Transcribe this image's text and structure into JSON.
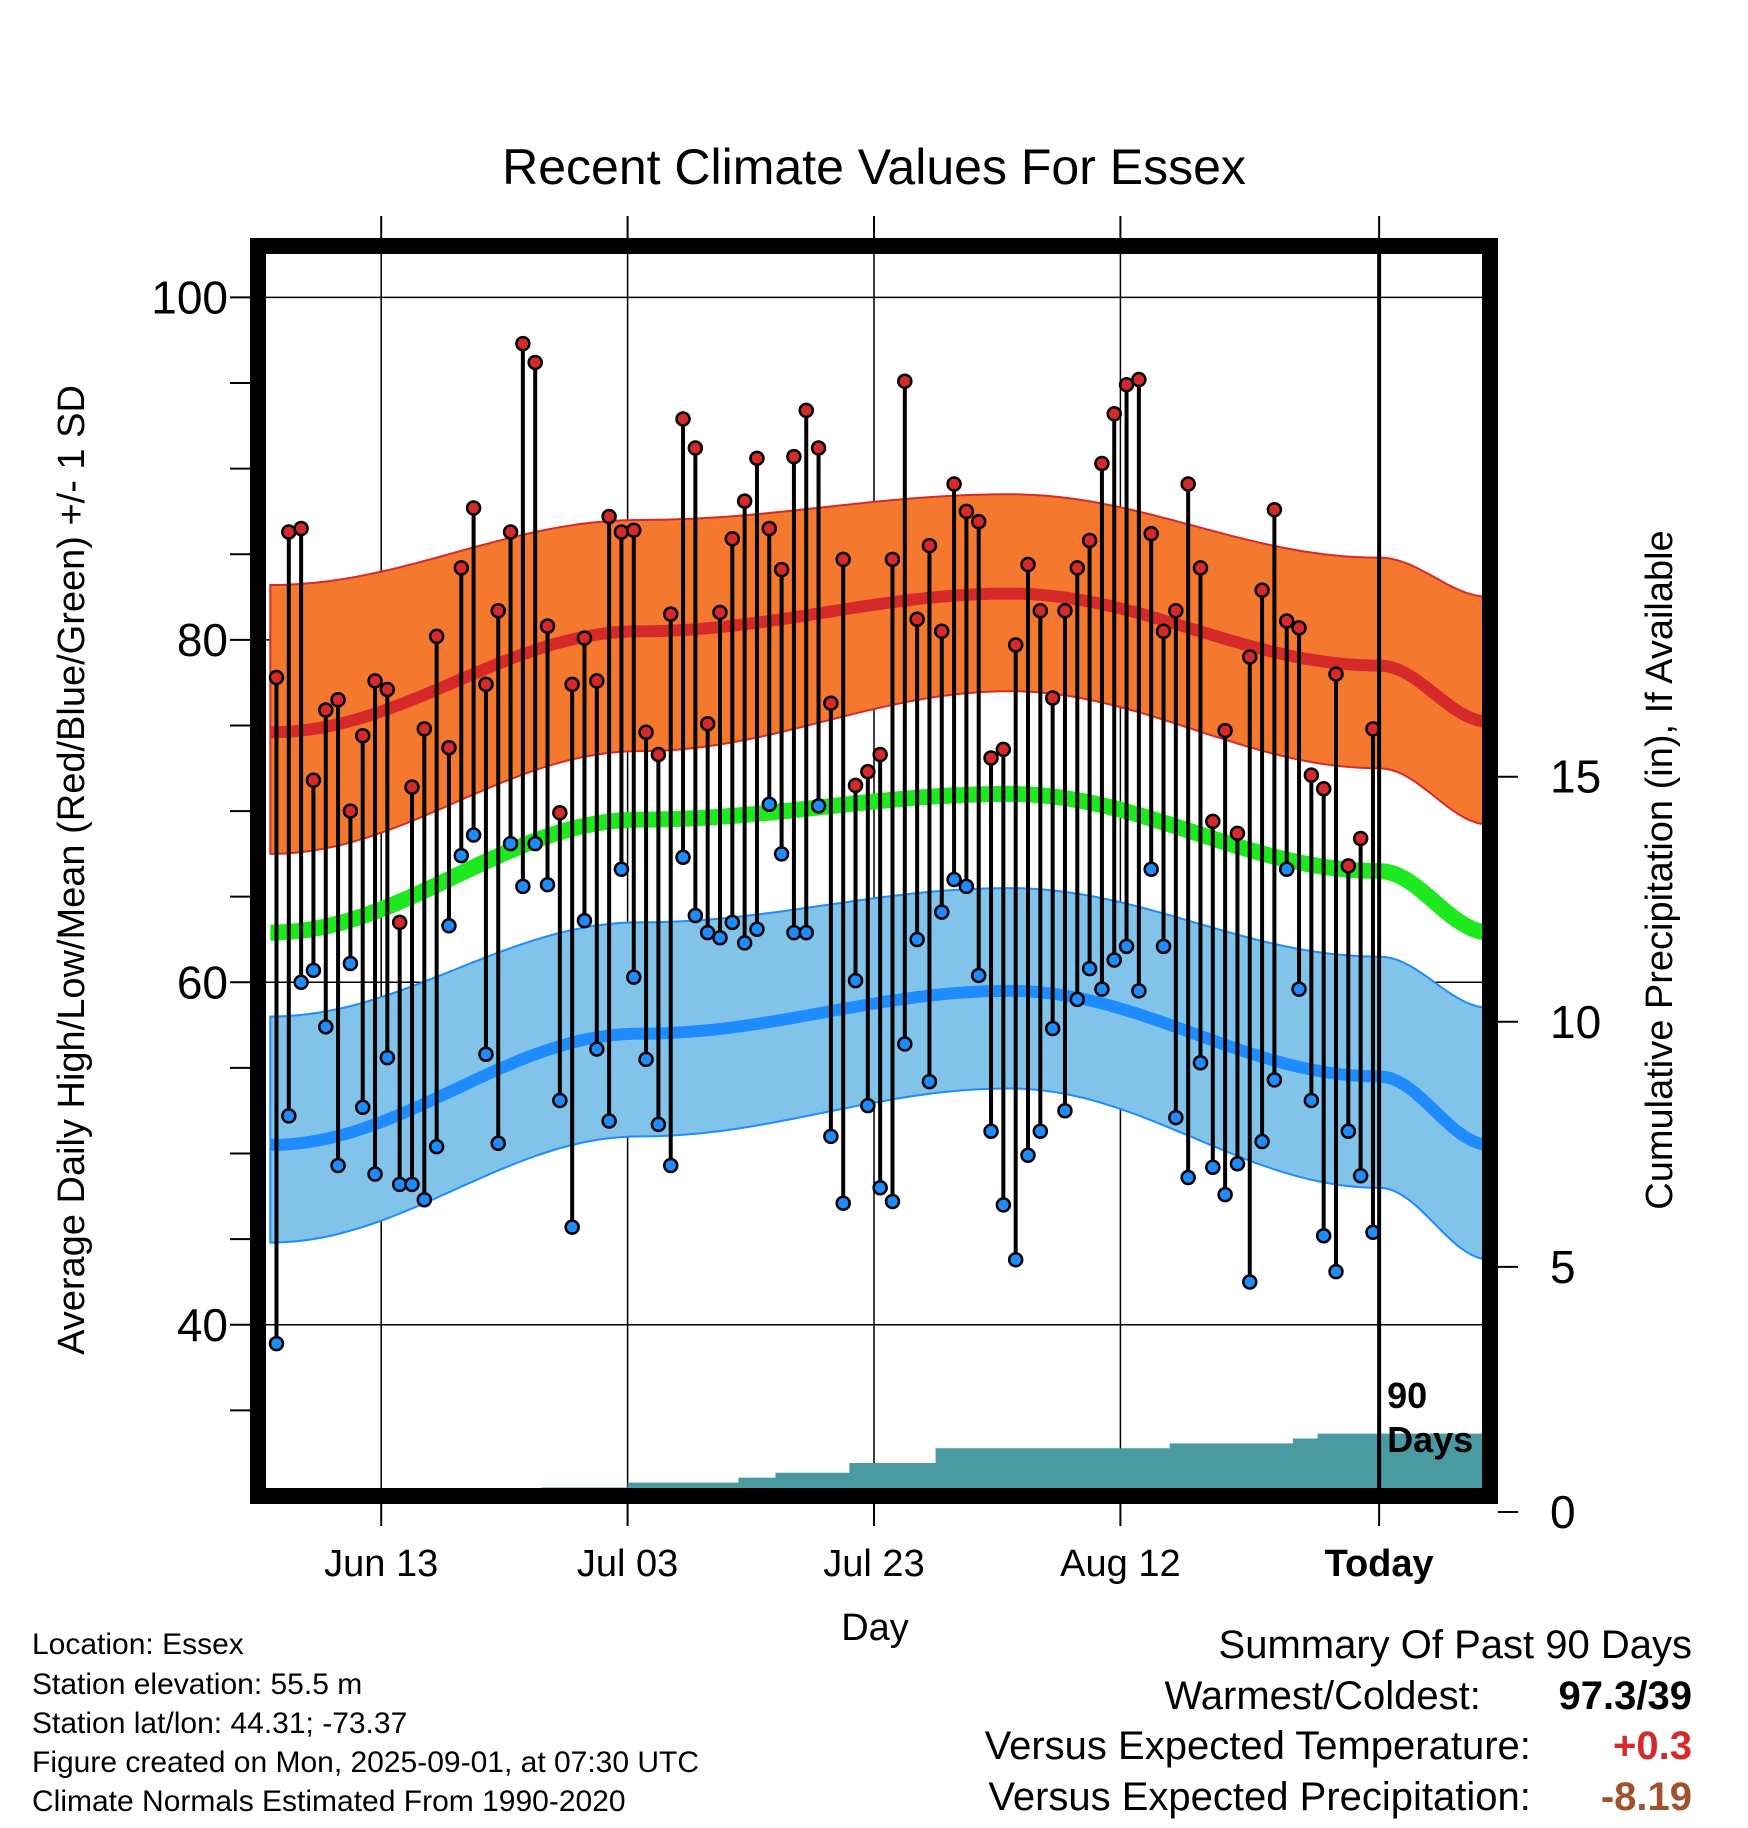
{
  "title": "Recent Climate Values For Essex",
  "chart_data": {
    "type": "line",
    "title": "Recent Climate Values For Essex",
    "xlabel": "Day",
    "ylabel": "Average Daily High/Low/Mean (Red/Blue/Green) +/- 1 SD",
    "y2label": "Cumulative Precipitation (in), If Available",
    "x_ticks": [
      "Jun 13",
      "Jul 03",
      "Jul 23",
      "Aug 12",
      "Today"
    ],
    "y_ticks": [
      40,
      60,
      80,
      100
    ],
    "y2_ticks": [
      0,
      5,
      10,
      15
    ],
    "ylim": [
      30,
      103
    ],
    "y2lim": [
      0,
      25.5
    ],
    "xlim_days_before_today": [
      -91,
      9
    ],
    "today_marker": "90 Days",
    "colors": {
      "high_band": "#f4792f",
      "high_mean": "#d62a2a",
      "low_band": "#82c3ea",
      "low_mean": "#1e8cff",
      "mean_line": "#1ee81e",
      "precip": "#4a9aa2",
      "high_dot": "#d62a2a",
      "low_dot": "#1e8cff"
    },
    "normals": {
      "days_before_today": [
        -90,
        -60,
        -30,
        0,
        9
      ],
      "high_mean": [
        74.6,
        80.5,
        82.7,
        78.5,
        75.2
      ],
      "high_sd_upper": [
        83.2,
        87.0,
        88.5,
        84.8,
        82.5
      ],
      "high_sd_lower": [
        67.5,
        73.5,
        77.0,
        72.5,
        69.2
      ],
      "mean": [
        62.9,
        69.5,
        71.0,
        66.5,
        62.9
      ],
      "low_mean": [
        50.5,
        57.0,
        59.5,
        54.5,
        50.5
      ],
      "low_sd_upper": [
        58.0,
        63.5,
        65.5,
        61.5,
        58.5
      ],
      "low_sd_lower": [
        44.8,
        51.0,
        53.8,
        48.0,
        43.8
      ]
    },
    "series": [
      {
        "name": "High",
        "values": [
          77.8,
          86.3,
          86.5,
          71.8,
          75.9,
          76.5,
          70.0,
          74.4,
          77.6,
          77.1,
          63.5,
          71.4,
          74.8,
          80.2,
          73.7,
          84.2,
          87.7,
          77.4,
          81.7,
          86.3,
          97.3,
          96.2,
          80.8,
          69.9,
          77.4,
          80.1,
          77.6,
          87.2,
          86.3,
          86.4,
          74.6,
          73.3,
          81.5,
          92.9,
          91.2,
          75.1,
          81.6,
          85.9,
          88.1,
          90.6,
          86.5,
          84.1,
          90.7,
          93.4,
          91.2,
          76.3,
          84.7,
          71.5,
          72.3,
          73.3,
          84.7,
          95.1,
          81.2,
          85.5,
          80.5,
          89.1,
          87.5,
          86.9,
          73.1,
          73.6,
          79.7,
          84.4,
          81.7,
          76.6,
          81.7,
          84.2,
          85.8,
          90.3,
          93.2,
          94.9,
          95.2,
          86.2,
          80.5,
          81.7,
          89.1,
          84.2,
          69.4,
          74.7,
          68.7,
          79.0,
          82.9,
          87.6,
          81.1,
          80.7,
          72.1,
          71.3,
          78.0,
          66.8,
          68.4,
          74.8
        ]
      },
      {
        "name": "Low",
        "values": [
          38.9,
          52.2,
          60.0,
          60.7,
          57.4,
          49.3,
          61.1,
          52.7,
          48.8,
          55.6,
          48.2,
          48.2,
          47.3,
          50.4,
          63.3,
          67.4,
          68.6,
          55.8,
          50.6,
          68.1,
          65.6,
          68.1,
          65.7,
          53.1,
          45.7,
          63.6,
          56.1,
          51.9,
          66.6,
          60.3,
          55.5,
          51.7,
          49.3,
          67.3,
          63.9,
          62.9,
          62.6,
          63.5,
          62.3,
          63.1,
          70.4,
          67.5,
          62.9,
          62.9,
          70.3,
          51.0,
          47.1,
          60.1,
          52.8,
          48.0,
          47.2,
          56.4,
          62.5,
          54.2,
          64.1,
          66.0,
          65.6,
          60.4,
          51.3,
          47.0,
          43.8,
          49.9,
          51.3,
          57.3,
          52.5,
          59.0,
          60.8,
          59.6,
          61.3,
          62.1,
          59.5,
          66.6,
          62.1,
          52.1,
          48.6,
          55.3,
          49.2,
          47.6,
          49.4,
          42.5,
          50.7,
          54.3,
          66.6,
          59.6,
          53.1,
          45.2,
          43.1,
          51.3,
          48.7,
          45.4
        ]
      },
      {
        "name": "Cumulative Precipitation",
        "values": [
          0.0,
          0.0,
          0.0,
          0.1,
          0.1,
          0.1,
          0.1,
          0.2,
          0.2,
          0.2,
          0.2,
          0.2,
          0.2,
          0.2,
          0.2,
          0.2,
          0.2,
          0.3,
          0.3,
          0.3,
          0.4,
          0.4,
          0.5,
          0.5,
          0.5,
          0.5,
          0.5,
          0.5,
          0.5,
          0.6,
          0.6,
          0.6,
          0.6,
          0.6,
          0.6,
          0.6,
          0.6,
          0.6,
          0.7,
          0.7,
          0.7,
          0.8,
          0.8,
          0.8,
          0.8,
          0.8,
          0.8,
          1.0,
          1.0,
          1.0,
          1.0,
          1.0,
          1.0,
          1.0,
          1.3,
          1.3,
          1.3,
          1.3,
          1.3,
          1.3,
          1.3,
          1.3,
          1.3,
          1.3,
          1.3,
          1.3,
          1.3,
          1.3,
          1.3,
          1.3,
          1.3,
          1.3,
          1.3,
          1.4,
          1.4,
          1.4,
          1.4,
          1.4,
          1.4,
          1.4,
          1.4,
          1.4,
          1.4,
          1.5,
          1.5,
          1.6,
          1.6,
          1.6,
          1.6,
          1.6
        ]
      }
    ]
  },
  "info": {
    "location": "Location: Essex",
    "elevation": "Station elevation: 55.5 m",
    "latlon": "Station lat/lon: 44.31; -73.37",
    "created": "Figure created on Mon, 2025-09-01, at 07:30 UTC",
    "normals": "Climate Normals Estimated From 1990-2020"
  },
  "summary": {
    "heading": "Summary Of Past 90 Days",
    "warmest_coldest_label": "Warmest/Coldest:",
    "warmest_coldest_value": "97.3/39",
    "temp_label": "Versus Expected Temperature:",
    "temp_value": "+0.3",
    "temp_color": "#d62a2a",
    "precip_label": "Versus Expected Precipitation:",
    "precip_value": "-8.19",
    "precip_color": "#a0522d"
  }
}
